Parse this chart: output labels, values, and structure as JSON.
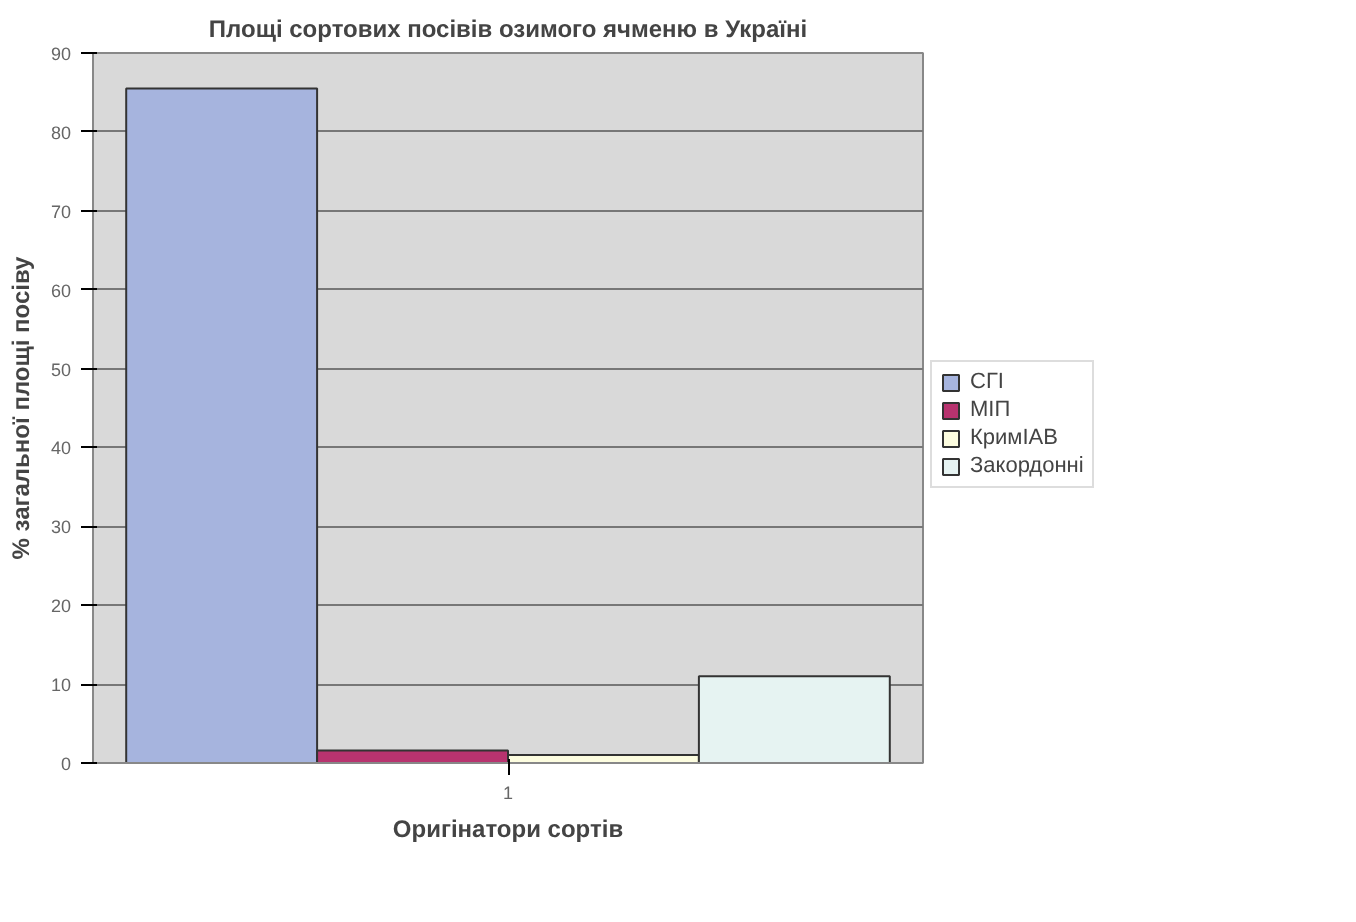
{
  "chart_data": {
    "type": "bar",
    "title": "Площі сортових посівів озимого ячменю в Україні",
    "xlabel": "Оригінатори сортів",
    "ylabel": "% загальної площі посіву",
    "categories": [
      "1"
    ],
    "series": [
      {
        "name": "СГІ",
        "color": "#a6b4de",
        "values": [
          85.5
        ]
      },
      {
        "name": "МІП",
        "color": "#b8336f",
        "values": [
          1.6
        ]
      },
      {
        "name": "КримІАВ",
        "color": "#fdfde0",
        "values": [
          1.0
        ]
      },
      {
        "name": "Закордонні",
        "color": "#e6f3f2",
        "values": [
          11
        ]
      }
    ],
    "ylim": [
      0,
      90
    ],
    "yticks": [
      0,
      10,
      20,
      30,
      40,
      50,
      60,
      70,
      80,
      90
    ],
    "grid": "y",
    "legend": "right"
  }
}
